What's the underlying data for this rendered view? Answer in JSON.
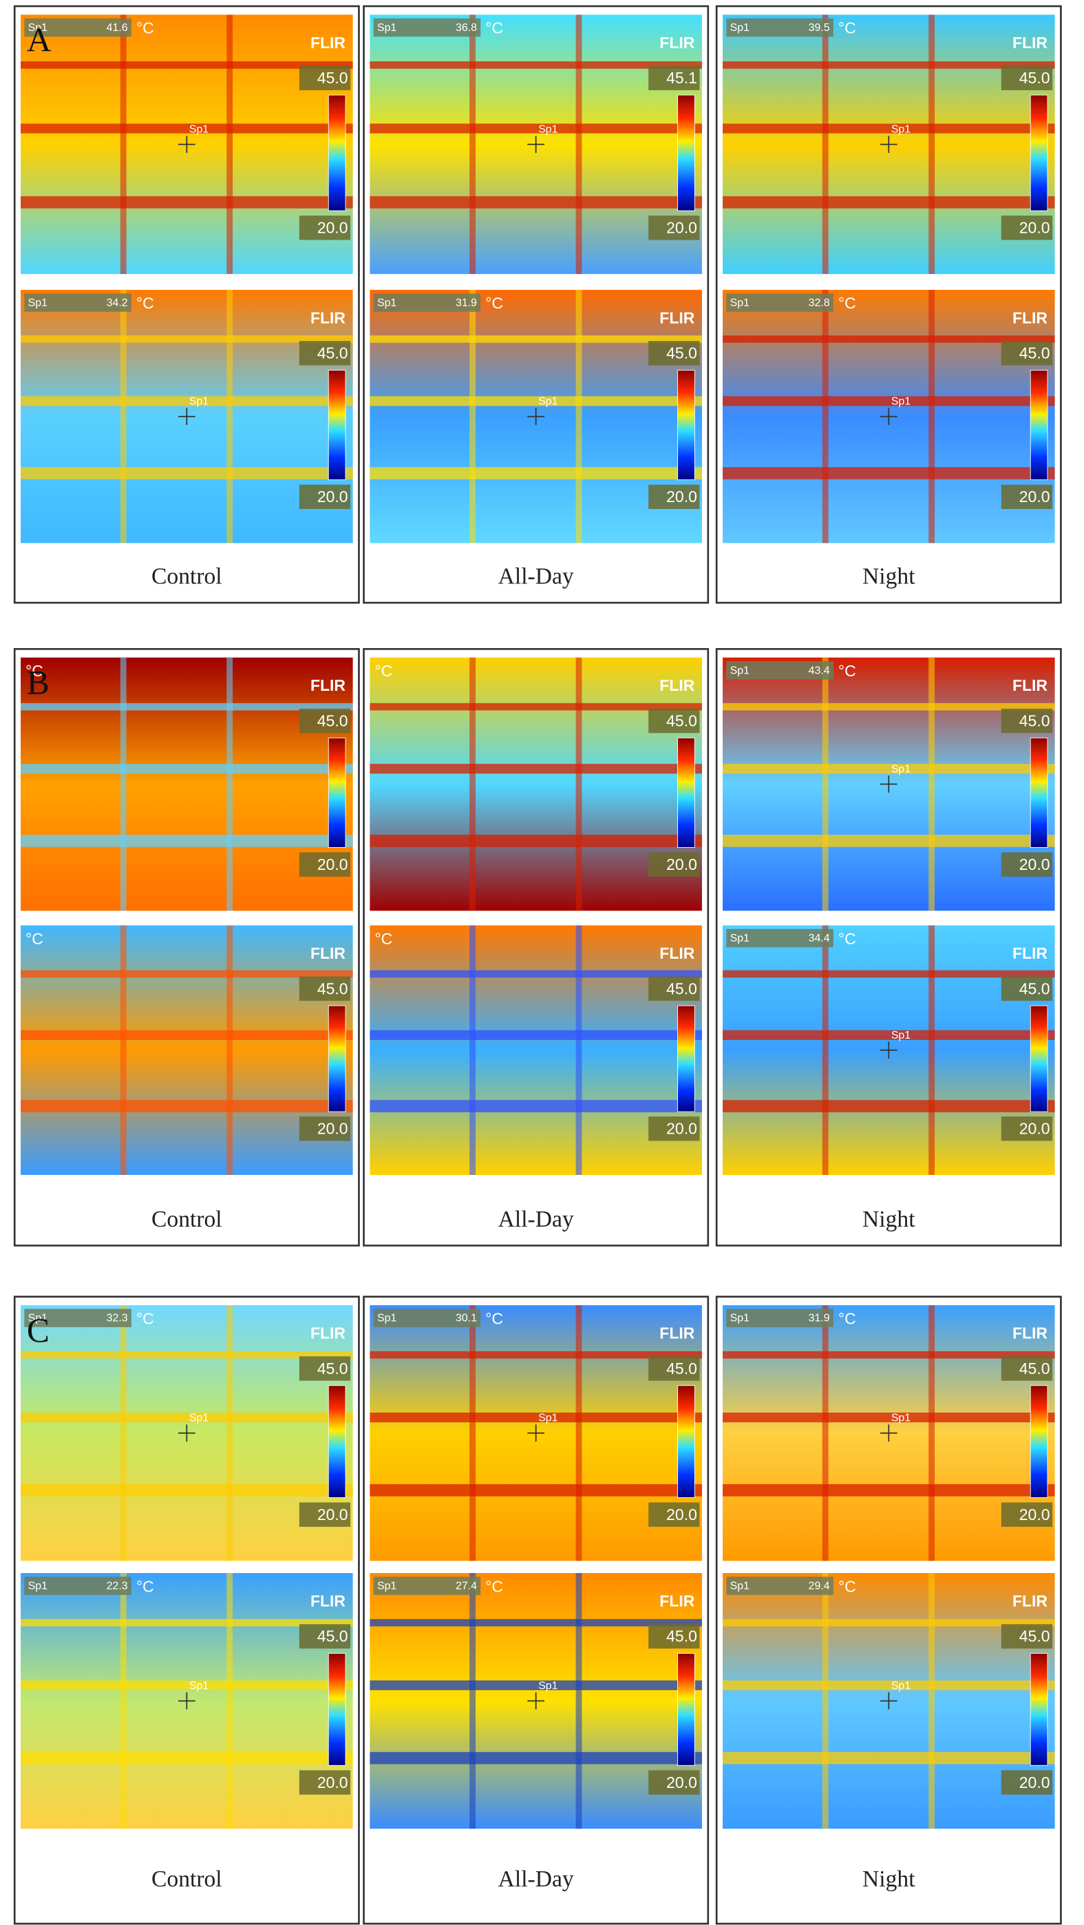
{
  "groups": [
    {
      "label": "A",
      "panels": [
        {
          "caption": "Control",
          "images": [
            {
              "sp_label": "Sp1",
              "sp_value": "41.6",
              "unit": "°C",
              "brand": "FLIR",
              "scale_max": "45.0",
              "scale_min": "20.0",
              "marker": "Sp1"
            },
            {
              "sp_label": "Sp1",
              "sp_value": "34.2",
              "unit": "°C",
              "brand": "FLIR",
              "scale_max": "45.0",
              "scale_min": "20.0",
              "marker": "Sp1"
            }
          ]
        },
        {
          "caption": "All-Day",
          "images": [
            {
              "sp_label": "Sp1",
              "sp_value": "36.8",
              "unit": "°C",
              "brand": "FLIR",
              "scale_max": "45.1",
              "scale_min": "20.0",
              "marker": "Sp1"
            },
            {
              "sp_label": "Sp1",
              "sp_value": "31.9",
              "unit": "°C",
              "brand": "FLIR",
              "scale_max": "45.0",
              "scale_min": "20.0",
              "marker": "Sp1"
            }
          ]
        },
        {
          "caption": "Night",
          "images": [
            {
              "sp_label": "Sp1",
              "sp_value": "39.5",
              "unit": "°C",
              "brand": "FLIR",
              "scale_max": "45.0",
              "scale_min": "20.0",
              "marker": "Sp1"
            },
            {
              "sp_label": "Sp1",
              "sp_value": "32.8",
              "unit": "°C",
              "brand": "FLIR",
              "scale_max": "45.0",
              "scale_min": "20.0",
              "marker": "Sp1"
            }
          ]
        }
      ]
    },
    {
      "label": "B",
      "panels": [
        {
          "caption": "Control",
          "images": [
            {
              "unit": "°C",
              "brand": "FLIR",
              "scale_max": "45.0",
              "scale_min": "20.0"
            },
            {
              "unit": "°C",
              "brand": "FLIR",
              "scale_max": "45.0",
              "scale_min": "20.0"
            }
          ]
        },
        {
          "caption": "All-Day",
          "images": [
            {
              "unit": "°C",
              "brand": "FLIR",
              "scale_max": "45.0",
              "scale_min": "20.0"
            },
            {
              "unit": "°C",
              "brand": "FLIR",
              "scale_max": "45.0",
              "scale_min": "20.0"
            }
          ]
        },
        {
          "caption": "Night",
          "images": [
            {
              "sp_label": "Sp1",
              "sp_value": "43.4",
              "unit": "°C",
              "brand": "FLIR",
              "scale_max": "45.0",
              "scale_min": "20.0",
              "marker": "Sp1"
            },
            {
              "sp_label": "Sp1",
              "sp_value": "34.4",
              "unit": "°C",
              "brand": "FLIR",
              "scale_max": "45.0",
              "scale_min": "20.0",
              "marker": "Sp1"
            }
          ]
        }
      ]
    },
    {
      "label": "C",
      "panels": [
        {
          "caption": "Control",
          "images": [
            {
              "sp_label": "Sp1",
              "sp_value": "32.3",
              "unit": "°C",
              "brand": "FLIR",
              "scale_max": "45.0",
              "scale_min": "20.0",
              "marker": "Sp1"
            },
            {
              "sp_label": "Sp1",
              "sp_value": "22.3",
              "unit": "°C",
              "brand": "FLIR",
              "scale_max": "45.0",
              "scale_min": "20.0",
              "marker": "Sp1"
            }
          ]
        },
        {
          "caption": "All-Day",
          "images": [
            {
              "sp_label": "Sp1",
              "sp_value": "30.1",
              "unit": "°C",
              "brand": "FLIR",
              "scale_max": "45.0",
              "scale_min": "20.0",
              "marker": "Sp1"
            },
            {
              "sp_label": "Sp1",
              "sp_value": "27.4",
              "unit": "°C",
              "brand": "FLIR",
              "scale_max": "45.0",
              "scale_min": "20.0",
              "marker": "Sp1"
            }
          ]
        },
        {
          "caption": "Night",
          "images": [
            {
              "sp_label": "Sp1",
              "sp_value": "31.9",
              "unit": "°C",
              "brand": "FLIR",
              "scale_max": "45.0",
              "scale_min": "20.0",
              "marker": "Sp1"
            },
            {
              "sp_label": "Sp1",
              "sp_value": "29.4",
              "unit": "°C",
              "brand": "FLIR",
              "scale_max": "45.0",
              "scale_min": "20.0",
              "marker": "Sp1"
            }
          ]
        }
      ]
    }
  ]
}
